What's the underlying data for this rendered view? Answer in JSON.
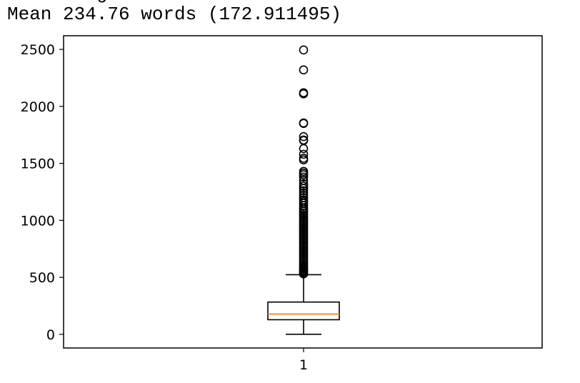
{
  "output": {
    "clipped_line": "Text Length",
    "mean_line": "Mean 234.76 words (172.911495)"
  },
  "chart_data": {
    "type": "boxplot",
    "categories": [
      "1"
    ],
    "ylim": [
      -120,
      2620
    ],
    "yticks": [
      0,
      500,
      1000,
      1500,
      2000,
      2500
    ],
    "ytick_labels": [
      "0",
      "500",
      "1000",
      "1500",
      "2000",
      "2500"
    ],
    "xtick_labels": [
      "1"
    ],
    "grid": false,
    "box": {
      "whisker_low": 0,
      "q1": 128,
      "median": 178,
      "q3": 283,
      "whisker_high": 523
    },
    "outliers": [
      2495,
      2320,
      2120,
      2110,
      1855,
      1850,
      1735,
      1705,
      1700,
      1630,
      1580,
      1545,
      1530,
      1430,
      1415,
      1400,
      1380,
      1350,
      1320,
      1300,
      1280,
      1260,
      1240,
      1220,
      1200,
      1180,
      1165,
      1150,
      1130,
      1110,
      1095,
      1080,
      1065,
      1050,
      1035,
      1020,
      1005,
      990,
      975,
      960,
      945,
      930,
      915,
      900,
      885,
      870,
      855,
      840,
      825,
      810,
      795,
      780,
      765,
      750,
      735,
      720,
      705,
      690,
      675,
      660,
      645,
      630,
      615,
      600,
      590,
      580,
      570,
      560,
      550,
      540,
      530
    ],
    "colors": {
      "median": "#ff7f0e",
      "box": "#000000",
      "flier": "#000000"
    }
  }
}
